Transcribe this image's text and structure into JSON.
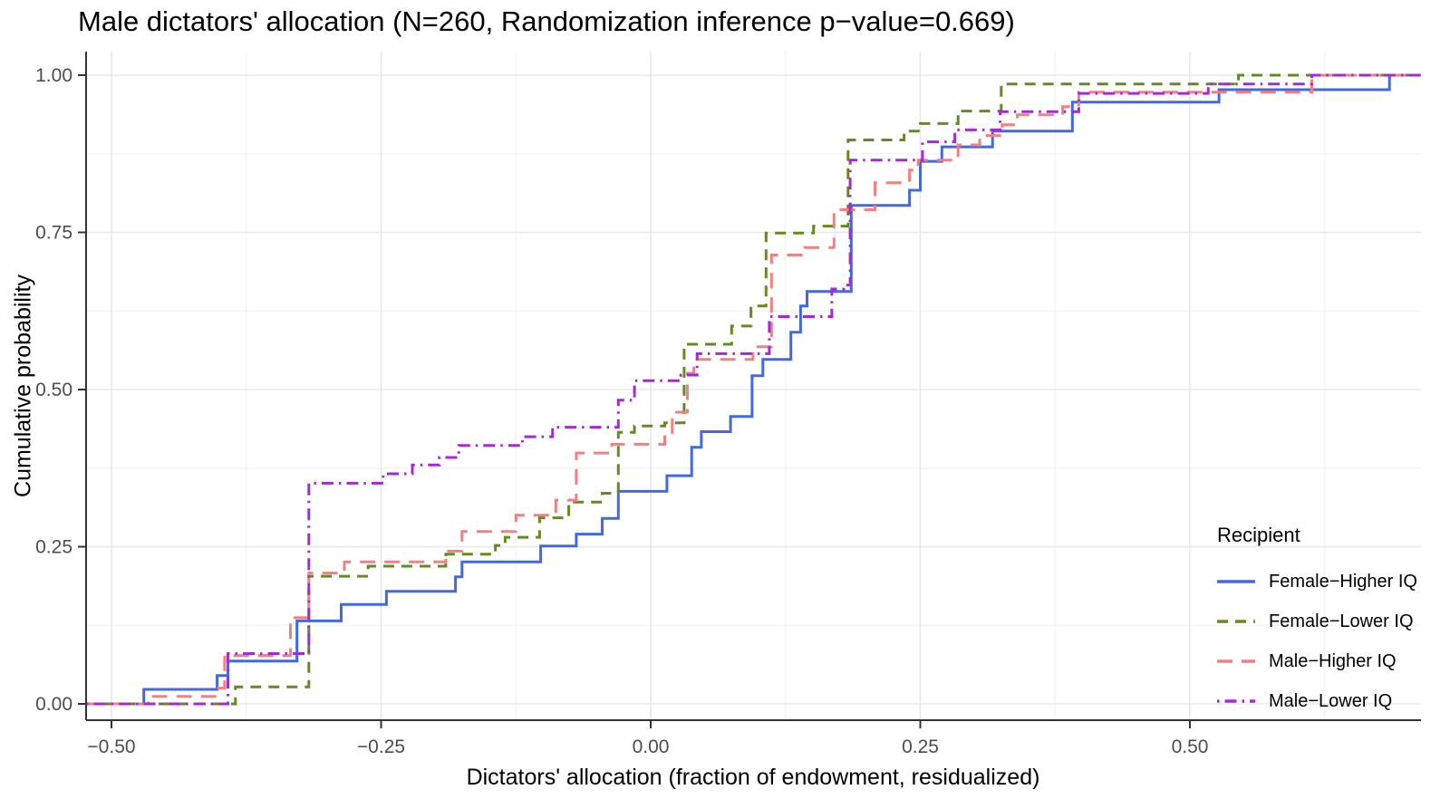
{
  "chart_data": {
    "type": "line",
    "subtype": "ecdf-step",
    "title": "Male dictators' allocation (N=260, Randomization inference p−value=0.669)",
    "xlabel": "Dictators' allocation (fraction of endowment, residualized)",
    "ylabel": "Cumulative probability",
    "stats": {
      "n": 260,
      "randomization_inference_p_value": 0.669
    },
    "xlim": [
      -0.5235,
      0.7143
    ],
    "ylim": [
      0,
      1
    ],
    "grid": {
      "major": true,
      "minor": true
    },
    "x_ticks": [
      {
        "value": -0.5,
        "label": "−0.50"
      },
      {
        "value": -0.25,
        "label": "−0.25"
      },
      {
        "value": 0.0,
        "label": "0.00"
      },
      {
        "value": 0.25,
        "label": "0.25"
      },
      {
        "value": 0.5,
        "label": "0.50"
      }
    ],
    "x_minor_ticks": [
      -0.375,
      -0.125,
      0.125,
      0.375,
      0.625
    ],
    "y_ticks": [
      {
        "value": 0.0,
        "label": "0.00"
      },
      {
        "value": 0.25,
        "label": "0.25"
      },
      {
        "value": 0.5,
        "label": "0.50"
      },
      {
        "value": 0.75,
        "label": "0.75"
      },
      {
        "value": 1.0,
        "label": "1.00"
      }
    ],
    "y_minor_ticks": [
      0.125,
      0.375,
      0.625,
      0.875
    ],
    "legend": {
      "title": "Recipient",
      "position": "inside-bottom-right"
    },
    "series": [
      {
        "name": "Female−Higher IQ",
        "color": "#4169E1",
        "dash": "solid",
        "points": [
          [
            -0.47,
            0.023
          ],
          [
            -0.402,
            0.045
          ],
          [
            -0.392,
            0.068
          ],
          [
            -0.328,
            0.132
          ],
          [
            -0.287,
            0.158
          ],
          [
            -0.245,
            0.179
          ],
          [
            -0.181,
            0.202
          ],
          [
            -0.175,
            0.226
          ],
          [
            -0.102,
            0.251
          ],
          [
            -0.069,
            0.27
          ],
          [
            -0.045,
            0.295
          ],
          [
            -0.03,
            0.338
          ],
          [
            0.015,
            0.363
          ],
          [
            0.038,
            0.408
          ],
          [
            0.047,
            0.433
          ],
          [
            0.074,
            0.457
          ],
          [
            0.094,
            0.522
          ],
          [
            0.104,
            0.548
          ],
          [
            0.13,
            0.591
          ],
          [
            0.139,
            0.633
          ],
          [
            0.145,
            0.656
          ],
          [
            0.186,
            0.793
          ],
          [
            0.24,
            0.817
          ],
          [
            0.25,
            0.863
          ],
          [
            0.27,
            0.886
          ],
          [
            0.317,
            0.911
          ],
          [
            0.391,
            0.957
          ],
          [
            0.527,
            0.977
          ],
          [
            0.685,
            1.0
          ]
        ]
      },
      {
        "name": "Female−Lower IQ",
        "color": "#648A20",
        "dash": "dashed",
        "points": [
          [
            -0.385,
            0.027
          ],
          [
            -0.317,
            0.203
          ],
          [
            -0.262,
            0.219
          ],
          [
            -0.19,
            0.238
          ],
          [
            -0.144,
            0.252
          ],
          [
            -0.135,
            0.265
          ],
          [
            -0.103,
            0.296
          ],
          [
            -0.076,
            0.321
          ],
          [
            -0.045,
            0.335
          ],
          [
            -0.03,
            0.432
          ],
          [
            -0.015,
            0.442
          ],
          [
            0.013,
            0.447
          ],
          [
            0.031,
            0.572
          ],
          [
            0.075,
            0.601
          ],
          [
            0.093,
            0.633
          ],
          [
            0.107,
            0.749
          ],
          [
            0.151,
            0.76
          ],
          [
            0.183,
            0.897
          ],
          [
            0.235,
            0.911
          ],
          [
            0.25,
            0.923
          ],
          [
            0.285,
            0.943
          ],
          [
            0.325,
            0.986
          ],
          [
            0.545,
            1.0
          ]
        ]
      },
      {
        "name": "Male−Higher IQ",
        "color": "#F37F7F",
        "dash": "long-dash",
        "points": [
          [
            -0.466,
            0.012
          ],
          [
            -0.402,
            0.025
          ],
          [
            -0.395,
            0.077
          ],
          [
            -0.334,
            0.137
          ],
          [
            -0.317,
            0.208
          ],
          [
            -0.284,
            0.226
          ],
          [
            -0.19,
            0.243
          ],
          [
            -0.175,
            0.274
          ],
          [
            -0.125,
            0.3
          ],
          [
            -0.088,
            0.324
          ],
          [
            -0.069,
            0.399
          ],
          [
            -0.036,
            0.413
          ],
          [
            0.013,
            0.432
          ],
          [
            0.02,
            0.464
          ],
          [
            0.034,
            0.526
          ],
          [
            0.04,
            0.548
          ],
          [
            0.095,
            0.568
          ],
          [
            0.112,
            0.714
          ],
          [
            0.143,
            0.726
          ],
          [
            0.17,
            0.786
          ],
          [
            0.208,
            0.829
          ],
          [
            0.24,
            0.849
          ],
          [
            0.248,
            0.865
          ],
          [
            0.285,
            0.889
          ],
          [
            0.305,
            0.904
          ],
          [
            0.326,
            0.921
          ],
          [
            0.34,
            0.937
          ],
          [
            0.382,
            0.95
          ],
          [
            0.397,
            0.973
          ],
          [
            0.613,
            1.0
          ]
        ]
      },
      {
        "name": "Male−Lower IQ",
        "color": "#A22BD5",
        "dash": "dash-dot",
        "points": [
          [
            -0.392,
            0.08
          ],
          [
            -0.317,
            0.351
          ],
          [
            -0.248,
            0.366
          ],
          [
            -0.221,
            0.38
          ],
          [
            -0.196,
            0.392
          ],
          [
            -0.178,
            0.411
          ],
          [
            -0.119,
            0.425
          ],
          [
            -0.091,
            0.44
          ],
          [
            -0.03,
            0.483
          ],
          [
            -0.015,
            0.514
          ],
          [
            0.028,
            0.523
          ],
          [
            0.043,
            0.557
          ],
          [
            0.11,
            0.616
          ],
          [
            0.168,
            0.66
          ],
          [
            0.179,
            0.666
          ],
          [
            0.185,
            0.865
          ],
          [
            0.252,
            0.894
          ],
          [
            0.282,
            0.913
          ],
          [
            0.324,
            0.942
          ],
          [
            0.397,
            0.971
          ],
          [
            0.517,
            0.986
          ],
          [
            0.613,
            1.0
          ]
        ]
      }
    ],
    "colors": {
      "tick_text": "#4D4D4D",
      "axis_line": "#333333",
      "grid_major": "#E8E8E8",
      "grid_minor": "#F2F2F2"
    }
  }
}
